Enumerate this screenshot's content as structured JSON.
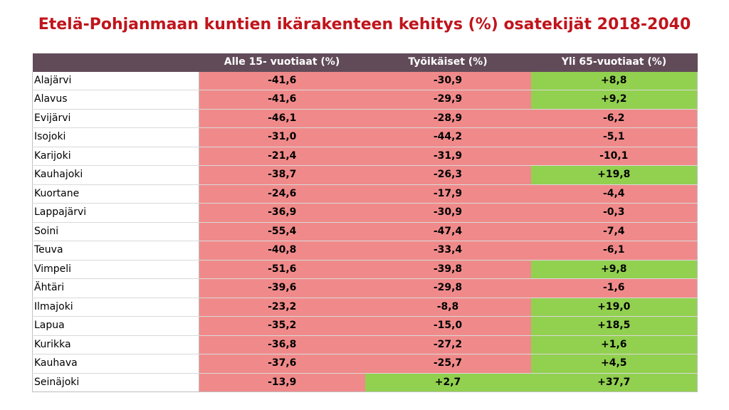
{
  "title": "Etelä-Pohjanmaan kuntien ikärakenteen kehitys (%) osatekijät 2018-2040",
  "colors": {
    "negative": "#f08a8a",
    "positive": "#92d050",
    "header": "#614b58",
    "title": "#c0141c"
  },
  "chart_data": {
    "type": "table",
    "title": "Etelä-Pohjanmaan kuntien ikärakenteen kehitys (%) osatekijät 2018-2040",
    "columns": [
      "",
      "Alle 15- vuotiaat (%)",
      "Työikäiset (%)",
      "Yli 65-vuotiaat (%)"
    ],
    "rows": [
      [
        "Alajärvi",
        "-41,6",
        "-30,9",
        "+8,8"
      ],
      [
        "Alavus",
        "-41,6",
        "-29,9",
        "+9,2"
      ],
      [
        "Evijärvi",
        "-46,1",
        "-28,9",
        "-6,2"
      ],
      [
        "Isojoki",
        "-31,0",
        "-44,2",
        "-5,1"
      ],
      [
        "Karijoki",
        "-21,4",
        "-31,9",
        "-10,1"
      ],
      [
        "Kauhajoki",
        "-38,7",
        "-26,3",
        "+19,8"
      ],
      [
        "Kuortane",
        "-24,6",
        "-17,9",
        "-4,4"
      ],
      [
        "Lappajärvi",
        "-36,9",
        "-30,9",
        "-0,3"
      ],
      [
        "Soini",
        "-55,4",
        "-47,4",
        "-7,4"
      ],
      [
        "Teuva",
        "-40,8",
        "-33,4",
        "-6,1"
      ],
      [
        "Vimpeli",
        "-51,6",
        "-39,8",
        "+9,8"
      ],
      [
        "Ähtäri",
        "-39,6",
        "-29,8",
        "-1,6"
      ],
      [
        "Ilmajoki",
        "-23,2",
        "-8,8",
        "+19,0"
      ],
      [
        "Lapua",
        "-35,2",
        "-15,0",
        "+18,5"
      ],
      [
        "Kurikka",
        "-36,8",
        "-27,2",
        "+1,6"
      ],
      [
        "Kauhava",
        "-37,6",
        "-25,7",
        "+4,5"
      ],
      [
        "Seinäjoki",
        "-13,9",
        "+2,7",
        "+37,7"
      ]
    ]
  }
}
